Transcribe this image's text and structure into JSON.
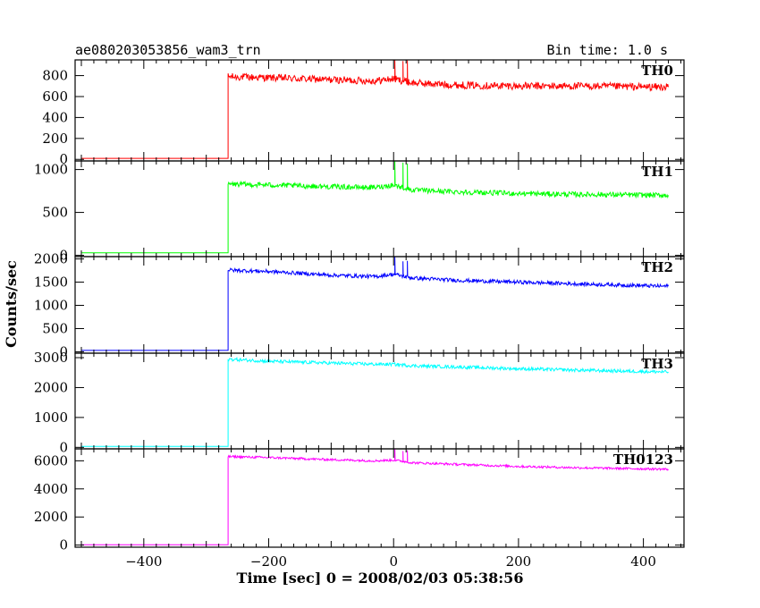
{
  "chart_data": {
    "type": "line",
    "title": "ae080203053856_wam3_trn",
    "subtitle": "Bin time: 1.0 s",
    "xlabel": "Time [sec] 0 = 2008/02/03 05:38:56",
    "ylabel": "Counts/sec",
    "xlim": [
      -510,
      465
    ],
    "x_ticks": [
      -400,
      -200,
      0,
      200,
      400
    ],
    "x_tick_labels": [
      "−400",
      "−200",
      "0",
      "200",
      "400"
    ],
    "grid": false,
    "panels": [
      {
        "name": "TH0",
        "color": "#ff0000",
        "ylim": [
          -15,
          950
        ],
        "y_ticks": [
          0,
          200,
          400,
          600,
          800
        ],
        "y_tick_labels": [
          "0",
          "200",
          "400",
          "600",
          "800"
        ],
        "series": {
          "x": [
            -500,
            -265,
            -265,
            -200,
            -100,
            -30,
            0,
            30,
            100,
            200,
            300,
            440
          ],
          "y": [
            10,
            10,
            790,
            780,
            760,
            750,
            770,
            730,
            710,
            700,
            700,
            690
          ],
          "noise": 35,
          "spikes": [
            {
              "x": 2,
              "y": 950
            },
            {
              "x": 15,
              "y": 940
            },
            {
              "x": 22,
              "y": 945
            }
          ]
        }
      },
      {
        "name": "TH1",
        "color": "#00ff00",
        "ylim": [
          -15,
          1100
        ],
        "y_ticks": [
          0,
          500,
          1000
        ],
        "y_tick_labels": [
          "0",
          "500",
          "1000"
        ],
        "series": {
          "x": [
            -500,
            -265,
            -265,
            -200,
            -100,
            -30,
            0,
            30,
            100,
            200,
            300,
            440
          ],
          "y": [
            30,
            30,
            830,
            820,
            800,
            790,
            820,
            760,
            740,
            720,
            710,
            700
          ],
          "noise": 30,
          "spikes": [
            {
              "x": 2,
              "y": 1110
            },
            {
              "x": 15,
              "y": 1080
            },
            {
              "x": 22,
              "y": 1070
            }
          ]
        }
      },
      {
        "name": "TH2",
        "color": "#0000ff",
        "ylim": [
          -30,
          2050
        ],
        "y_ticks": [
          0,
          500,
          1000,
          1500,
          2000
        ],
        "y_tick_labels": [
          "0",
          "500",
          "1000",
          "1500",
          "2000"
        ],
        "series": {
          "x": [
            -500,
            -265,
            -265,
            -200,
            -100,
            -30,
            0,
            30,
            100,
            200,
            300,
            440
          ],
          "y": [
            30,
            30,
            1760,
            1730,
            1650,
            1620,
            1670,
            1590,
            1540,
            1500,
            1460,
            1410
          ],
          "noise": 40,
          "spikes": [
            {
              "x": 2,
              "y": 2050
            },
            {
              "x": 15,
              "y": 1950
            },
            {
              "x": 22,
              "y": 1960
            }
          ]
        }
      },
      {
        "name": "TH3",
        "color": "#00ffff",
        "ylim": [
          -50,
          3150
        ],
        "y_ticks": [
          0,
          1000,
          2000,
          3000
        ],
        "y_tick_labels": [
          "0",
          "1000",
          "2000",
          "3000"
        ],
        "series": {
          "x": [
            -500,
            -265,
            -265,
            -200,
            -100,
            -30,
            0,
            30,
            100,
            200,
            300,
            440
          ],
          "y": [
            30,
            30,
            2950,
            2880,
            2820,
            2780,
            2780,
            2730,
            2690,
            2630,
            2580,
            2520
          ],
          "noise": 55,
          "spikes": []
        }
      },
      {
        "name": "TH0123",
        "color": "#ff00ff",
        "ylim": [
          -150,
          6850
        ],
        "y_ticks": [
          0,
          2000,
          4000,
          6000
        ],
        "y_tick_labels": [
          "0",
          "2000",
          "4000",
          "6000"
        ],
        "series": {
          "x": [
            -500,
            -265,
            -265,
            -200,
            -100,
            -30,
            0,
            30,
            100,
            200,
            300,
            440
          ],
          "y": [
            30,
            30,
            6300,
            6230,
            6080,
            6000,
            6050,
            5860,
            5750,
            5600,
            5500,
            5400
          ],
          "noise": 80,
          "spikes": [
            {
              "x": 2,
              "y": 6900
            },
            {
              "x": 15,
              "y": 6700
            },
            {
              "x": 22,
              "y": 6750
            }
          ]
        }
      }
    ]
  }
}
